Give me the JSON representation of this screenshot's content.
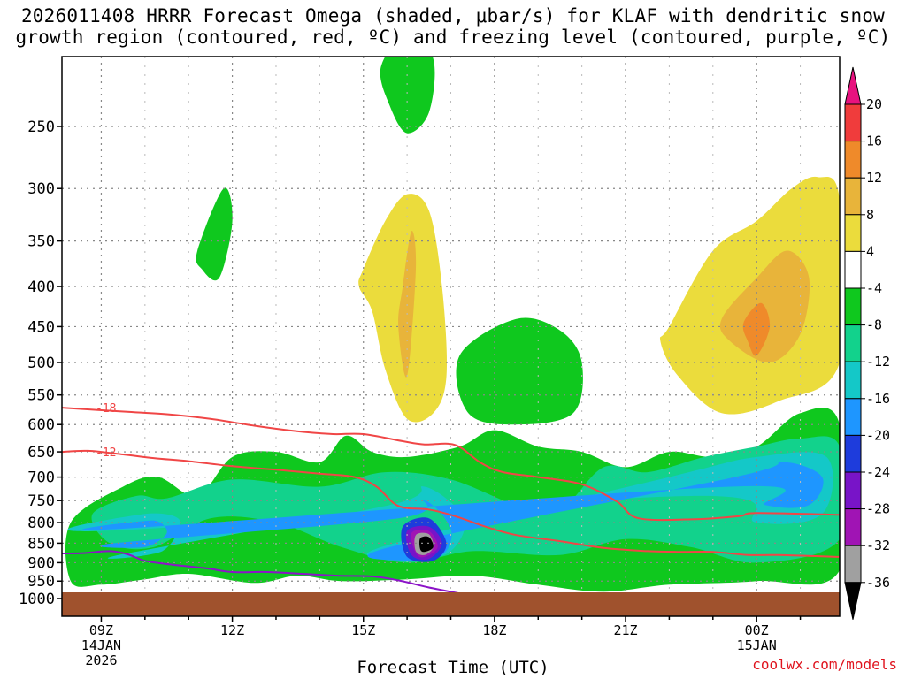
{
  "title_line1": "2026011408 HRRR Forecast Omega (shaded, μbar/s) for KLAF with dendritic snow",
  "title_line2": "growth region (contoured, red, ºC) and freezing level (contoured, purple, ºC)",
  "watermark": "coolwx.com/models",
  "chart_data": {
    "type": "heatmap",
    "title": "2026011408 HRRR Forecast Omega (shaded, μbar/s) for KLAF with dendritic snow growth region (contoured, red, ºC) and freezing level (contoured, purple, ºC)",
    "xlabel": "Forecast Time (UTC)",
    "ylabel": "",
    "xlim": [
      8.1,
      25.9
    ],
    "ylim_hpa": [
      1000,
      200
    ],
    "y_ticks": [
      250,
      300,
      350,
      400,
      450,
      500,
      550,
      600,
      650,
      700,
      750,
      800,
      850,
      900,
      950,
      1000
    ],
    "x_ticks": [
      {
        "hour": 9,
        "label": "09Z",
        "date": "14JAN",
        "year": "2026"
      },
      {
        "hour": 12,
        "label": "12Z",
        "date": "",
        "year": ""
      },
      {
        "hour": 15,
        "label": "15Z",
        "date": "",
        "year": ""
      },
      {
        "hour": 18,
        "label": "18Z",
        "date": "",
        "year": ""
      },
      {
        "hour": 21,
        "label": "21Z",
        "date": "",
        "year": ""
      },
      {
        "hour": 24,
        "label": "00Z",
        "date": "15JAN",
        "year": ""
      }
    ],
    "colorbar": {
      "labels": [
        20,
        16,
        12,
        8,
        4,
        -4,
        -8,
        -12,
        -16,
        -20,
        -24,
        -28,
        -32,
        -36
      ],
      "bins": [
        {
          "range": ">20",
          "color": "#e8127f"
        },
        {
          "range": "16 to 20",
          "color": "#f03c3c"
        },
        {
          "range": "12 to 16",
          "color": "#ef8a2a"
        },
        {
          "range": "8 to 12",
          "color": "#e8b43a"
        },
        {
          "range": "4 to 8",
          "color": "#ebdc3c"
        },
        {
          "range": "-4 to 4",
          "color": "#ffffff"
        },
        {
          "range": "-8 to -4",
          "color": "#0fc81e"
        },
        {
          "range": "-12 to -8",
          "color": "#12d28c"
        },
        {
          "range": "-16 to -12",
          "color": "#14c8c8"
        },
        {
          "range": "-20 to -16",
          "color": "#1e96ff"
        },
        {
          "range": "-24 to -20",
          "color": "#1e3cdc"
        },
        {
          "range": "-28 to -24",
          "color": "#7814c8"
        },
        {
          "range": "-32 to -28",
          "color": "#a014b4"
        },
        {
          "range": "-36 to -32",
          "color": "#a0a0a0"
        },
        {
          "range": "<-36",
          "color": "#000000"
        }
      ]
    },
    "contours": [
      {
        "name": "dendritic -18C",
        "label": "-18",
        "color": "#f04646",
        "points": [
          [
            8.1,
            571
          ],
          [
            9.6,
            578
          ],
          [
            10.5,
            582
          ],
          [
            11.5,
            590
          ],
          [
            12.5,
            602
          ],
          [
            13.5,
            612
          ],
          [
            14.3,
            617
          ],
          [
            15.0,
            617
          ],
          [
            15.9,
            630
          ],
          [
            16.4,
            636
          ],
          [
            17.1,
            637
          ],
          [
            17.7,
            672
          ],
          [
            18.2,
            690
          ],
          [
            19.0,
            700
          ],
          [
            20.0,
            715
          ],
          [
            20.8,
            752
          ],
          [
            21.3,
            790
          ],
          [
            22.6,
            792
          ],
          [
            23.6,
            785
          ],
          [
            24.0,
            778
          ],
          [
            25.9,
            782
          ]
        ]
      },
      {
        "name": "dendritic -12C",
        "label": "-12",
        "color": "#f04646",
        "points": [
          [
            8.1,
            650
          ],
          [
            8.7,
            648
          ],
          [
            9.5,
            655
          ],
          [
            10.2,
            662
          ],
          [
            11.0,
            668
          ],
          [
            12.0,
            678
          ],
          [
            13.0,
            685
          ],
          [
            14.0,
            693
          ],
          [
            14.8,
            700
          ],
          [
            15.3,
            720
          ],
          [
            15.8,
            762
          ],
          [
            16.5,
            770
          ],
          [
            17.1,
            785
          ],
          [
            17.8,
            810
          ],
          [
            18.5,
            830
          ],
          [
            19.5,
            845
          ],
          [
            20.5,
            862
          ],
          [
            21.5,
            870
          ],
          [
            22.2,
            872
          ],
          [
            23.0,
            872
          ],
          [
            23.8,
            880
          ],
          [
            24.5,
            880
          ],
          [
            25.9,
            885
          ]
        ]
      },
      {
        "name": "freezing level 0C",
        "label": "",
        "color": "#8c14c8",
        "points": [
          [
            8.1,
            876
          ],
          [
            8.6,
            875
          ],
          [
            9.2,
            870
          ],
          [
            9.6,
            878
          ],
          [
            10.0,
            895
          ],
          [
            10.6,
            905
          ],
          [
            11.4,
            915
          ],
          [
            12.0,
            925
          ],
          [
            12.8,
            925
          ],
          [
            13.6,
            930
          ],
          [
            14.4,
            935
          ],
          [
            15.2,
            937
          ],
          [
            15.8,
            948
          ],
          [
            16.5,
            968
          ],
          [
            17.2,
            985
          ]
        ]
      }
    ],
    "fill_regions": [
      {
        "bin": "-8 to -4",
        "x": [
          8.3,
          9.5,
          10.3,
          11.2,
          12.0,
          13.0,
          14.0,
          14.6,
          15.2,
          16.0,
          17.2,
          18.0,
          19.0,
          20.0,
          21.0,
          22.0,
          23.0,
          24.0,
          25.0,
          25.9,
          25.9,
          24.0,
          22.0,
          20.5,
          19.0,
          17.5,
          16.0,
          14.5,
          13.5,
          12.5,
          11.0,
          10.0,
          9.0,
          8.3
        ],
        "y": [
          800,
          720,
          700,
          740,
          660,
          650,
          670,
          620,
          650,
          660,
          640,
          610,
          640,
          650,
          680,
          650,
          660,
          640,
          580,
          600,
          920,
          950,
          960,
          980,
          960,
          935,
          945,
          950,
          935,
          955,
          930,
          945,
          960,
          950
        ]
      },
      {
        "bin": "-12 to -8",
        "x": [
          8.8,
          9.8,
          10.5,
          12.0,
          14.0,
          15.5,
          17.0,
          18.5,
          19.5,
          20.5,
          21.5,
          22.8,
          24.0,
          25.0,
          25.9,
          25.9,
          24.0,
          22.5,
          21.0,
          19.5,
          17.5,
          16.0,
          14.5,
          13.0,
          11.5,
          10.2,
          9.2
        ],
        "y": [
          780,
          740,
          745,
          705,
          720,
          690,
          705,
          760,
          770,
          680,
          690,
          660,
          640,
          625,
          640,
          840,
          900,
          860,
          840,
          880,
          870,
          900,
          860,
          800,
          790,
          860,
          850
        ]
      },
      {
        "bin": "-16 to -12",
        "x": [
          9.0,
          10.0,
          10.8,
          10.4,
          9.4,
          15.6,
          16.4,
          17.3,
          17.0,
          16.2,
          15.4,
          22.0,
          24.0,
          25.6,
          25.5,
          24.0,
          22.5
        ],
        "y": [
          820,
          780,
          795,
          870,
          880,
          760,
          720,
          790,
          870,
          890,
          860,
          700,
          660,
          660,
          780,
          800,
          740
        ]
      },
      {
        "bin": "-20 to -16",
        "x": [
          9.4,
          10.2,
          10.5,
          10.0,
          9.3,
          15.8,
          16.4,
          17.0,
          16.8,
          16.0,
          15.6,
          23.5,
          24.6,
          25.5,
          25.2,
          24.2,
          23.4
        ],
        "y": [
          815,
          795,
          825,
          860,
          850,
          790,
          750,
          815,
          880,
          895,
          860,
          700,
          670,
          700,
          760,
          760,
          720
        ]
      },
      {
        "bin": "-24 to -20",
        "x": [
          15.9,
          16.5,
          16.9,
          16.6,
          16.0
        ],
        "y": [
          810,
          790,
          850,
          895,
          885
        ]
      },
      {
        "bin": "-28 to -24",
        "x": [
          16.0,
          16.5,
          16.8,
          16.5,
          16.1
        ],
        "y": [
          820,
          810,
          850,
          890,
          880
        ]
      },
      {
        "bin": "-32 to -28",
        "x": [
          16.1,
          16.5,
          16.7,
          16.4,
          16.2
        ],
        "y": [
          825,
          820,
          860,
          885,
          875
        ]
      },
      {
        "bin": "-36 to -32",
        "x": [
          16.2,
          16.5,
          16.6,
          16.4,
          16.2
        ],
        "y": [
          830,
          828,
          860,
          880,
          870
        ]
      },
      {
        "bin": "<-36",
        "x": [
          16.3,
          16.5,
          16.6,
          16.4,
          16.3
        ],
        "y": [
          838,
          835,
          860,
          872,
          865
        ]
      },
      {
        "bin": "4 to 8",
        "x": [
          15.0,
          15.5,
          16.0,
          16.5,
          16.8,
          16.9,
          16.6,
          16.0,
          15.5,
          15.2,
          14.9
        ],
        "y": [
          380,
          330,
          305,
          320,
          400,
          520,
          580,
          590,
          510,
          430,
          400
        ]
      },
      {
        "bin": "8 to 12",
        "x": [
          15.9,
          16.1,
          16.2,
          16.0,
          15.8
        ],
        "y": [
          400,
          340,
          380,
          520,
          450
        ]
      },
      {
        "bin": "4 to 8",
        "x": [
          22.0,
          23.0,
          24.0,
          24.8,
          25.4,
          25.9,
          25.9,
          24.5,
          23.2,
          22.2,
          21.8
        ],
        "y": [
          450,
          360,
          330,
          300,
          290,
          310,
          500,
          560,
          580,
          520,
          470
        ]
      },
      {
        "bin": "8 to 12",
        "x": [
          23.2,
          24.0,
          24.7,
          25.2,
          25.0,
          24.3,
          23.4
        ],
        "y": [
          440,
          390,
          360,
          390,
          460,
          500,
          470
        ]
      },
      {
        "bin": "12 to 16",
        "x": [
          23.7,
          24.1,
          24.3,
          24.0,
          23.8
        ],
        "y": [
          445,
          420,
          450,
          490,
          470
        ]
      },
      {
        "bin": "-8 to -4",
        "x": [
          15.4,
          16.0,
          16.6,
          16.5,
          16.0,
          15.6
        ],
        "y": [
          210,
          190,
          205,
          240,
          255,
          235
        ]
      },
      {
        "bin": "-8 to -4",
        "x": [
          11.2,
          11.8,
          12.0,
          11.7,
          11.3
        ],
        "y": [
          360,
          300,
          330,
          390,
          380
        ]
      },
      {
        "bin": "-8 to -4",
        "x": [
          17.2,
          18.5,
          19.5,
          20.0,
          19.8,
          18.5,
          17.4
        ],
        "y": [
          490,
          440,
          455,
          500,
          580,
          600,
          580
        ]
      }
    ]
  }
}
